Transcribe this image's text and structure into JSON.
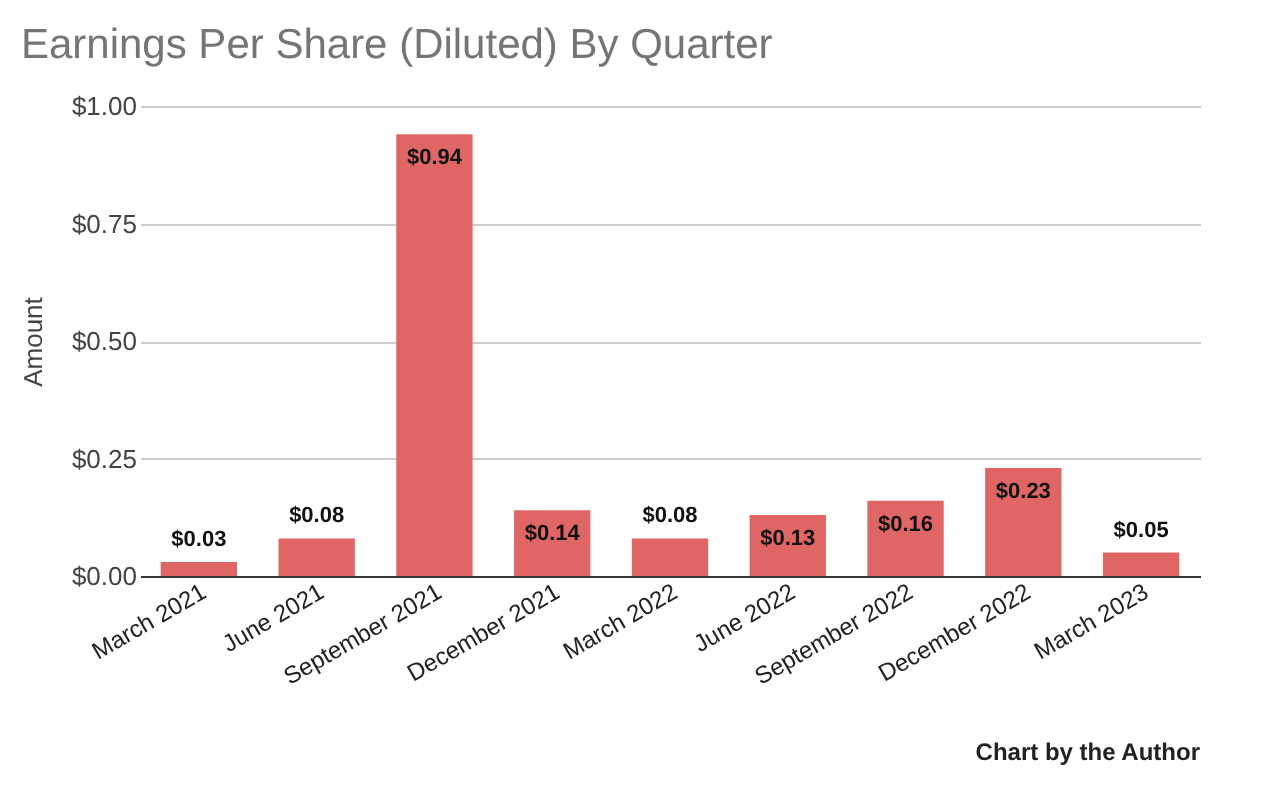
{
  "chart_data": {
    "type": "bar",
    "title": "Earnings Per Share (Diluted) By Quarter",
    "ylabel": "Amount",
    "categories": [
      "March 2021",
      "June 2021",
      "September 2021",
      "December 2021",
      "March 2022",
      "June 2022",
      "September 2022",
      "December 2022",
      "March 2023"
    ],
    "values": [
      0.03,
      0.08,
      0.94,
      0.14,
      0.08,
      0.13,
      0.16,
      0.23,
      0.05
    ],
    "value_labels": [
      "$0.03",
      "$0.08",
      "$0.94",
      "$0.14",
      "$0.08",
      "$0.13",
      "$0.16",
      "$0.23",
      "$0.05"
    ],
    "color": "#e06666",
    "ylim": [
      0,
      1
    ],
    "yticks": [
      {
        "value": 0,
        "label": "$0.00"
      },
      {
        "value": 0.25,
        "label": "$0.25"
      },
      {
        "value": 0.5,
        "label": "$0.50"
      },
      {
        "value": 0.75,
        "label": "$0.75"
      },
      {
        "value": 1,
        "label": "$1.00"
      }
    ],
    "grid": "y",
    "annotations": [
      "Chart by the Author"
    ]
  }
}
